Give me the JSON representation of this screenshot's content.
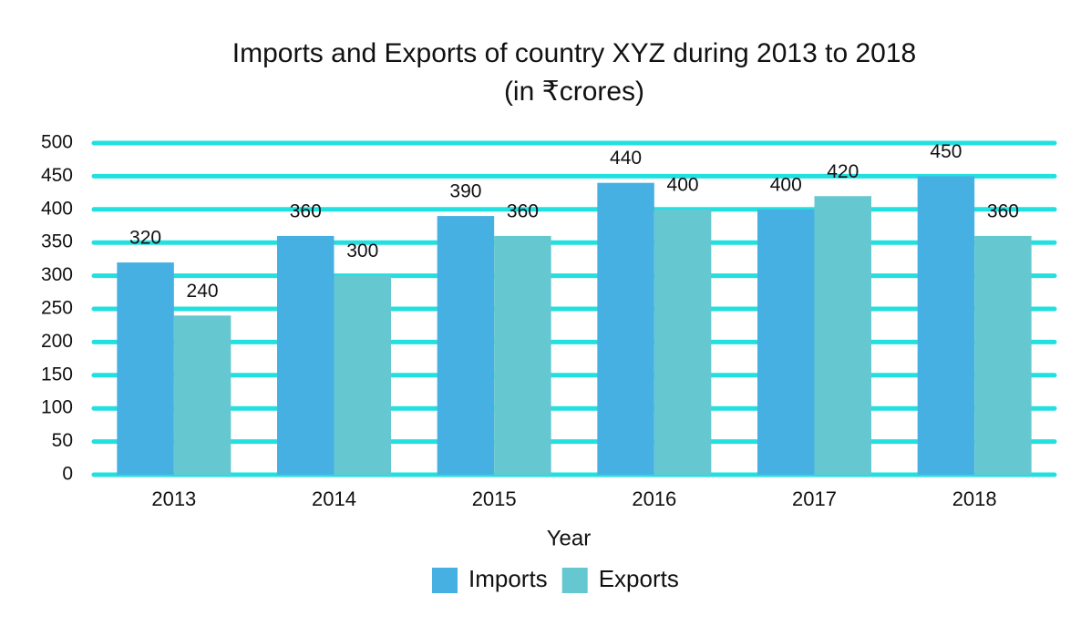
{
  "chart_data": {
    "type": "bar",
    "title": "Imports and Exports of country XYZ during 2013 to 2018",
    "subtitle": "(in ₹crores)",
    "x_label": "Year",
    "categories": [
      "2013",
      "2014",
      "2015",
      "2016",
      "2017",
      "2018"
    ],
    "series": [
      {
        "name": "Imports",
        "color": "#47b0e3",
        "values": [
          320,
          360,
          390,
          440,
          400,
          450
        ]
      },
      {
        "name": "Exports",
        "color": "#65c8d0",
        "values": [
          240,
          300,
          360,
          400,
          420,
          360
        ]
      }
    ],
    "ylim": [
      0,
      500
    ],
    "yticks": [
      0,
      50,
      100,
      150,
      200,
      250,
      300,
      350,
      400,
      450,
      500
    ],
    "grid": true,
    "grid_color": "#22e0e0",
    "legend": "bottom"
  }
}
